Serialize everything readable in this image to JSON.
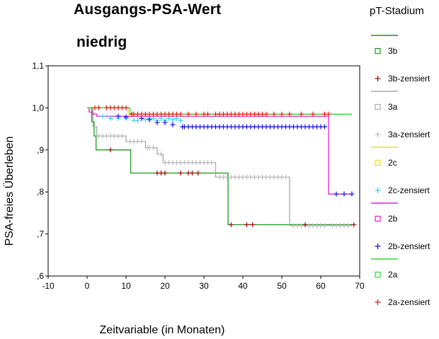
{
  "header": {
    "title": "Ausgangs-PSA-Wert",
    "subtitle": "niedrig"
  },
  "chart_data": {
    "type": "line",
    "step": true,
    "xlabel": "Zeitvariable (in Monaten)",
    "ylabel": "PSA-freies Überleben",
    "xlim": [
      -10,
      70
    ],
    "ylim": [
      0.6,
      1.1
    ],
    "x_ticks": [
      -10,
      0,
      10,
      20,
      30,
      40,
      50,
      60,
      70
    ],
    "x_tick_labels": [
      "-10",
      "0",
      "10",
      "20",
      "30",
      "40",
      "50",
      "60",
      "70"
    ],
    "y_ticks": [
      0.6,
      0.7,
      0.8,
      0.9,
      1.0,
      1.1
    ],
    "y_tick_labels": [
      ",6",
      ",7",
      ",8",
      ",9",
      "1,0",
      "1,1"
    ],
    "legend_title": "pT-Stadium",
    "legend_position": "right",
    "series": [
      {
        "name": "3b",
        "color": "#1a9a1a",
        "steps": [
          [
            0,
            1.0
          ],
          [
            1.2,
            0.967
          ],
          [
            1.8,
            0.933
          ],
          [
            2.3,
            0.9
          ],
          [
            11.2,
            0.845
          ],
          [
            36.2,
            0.722
          ],
          [
            68.5,
            0.722
          ]
        ],
        "censored_name": "3b-zensiert",
        "censored_color": "#a01010",
        "censored": [
          [
            6,
            0.9
          ],
          [
            11.5,
            0.985
          ],
          [
            18,
            0.845
          ],
          [
            19,
            0.845
          ],
          [
            20,
            0.845
          ],
          [
            24,
            0.845
          ],
          [
            26,
            0.845
          ],
          [
            27,
            0.845
          ],
          [
            28.5,
            0.845
          ],
          [
            37,
            0.722
          ],
          [
            41,
            0.722
          ],
          [
            42.5,
            0.722
          ],
          [
            56,
            0.722
          ],
          [
            68.5,
            0.722
          ]
        ]
      },
      {
        "name": "3a",
        "color": "#a8a8a8",
        "steps": [
          [
            0,
            1.0
          ],
          [
            1.5,
            0.955
          ],
          [
            2.5,
            0.933
          ],
          [
            10,
            0.92
          ],
          [
            15,
            0.905
          ],
          [
            18,
            0.89
          ],
          [
            19.5,
            0.87
          ],
          [
            33,
            0.835
          ],
          [
            52,
            0.72
          ],
          [
            68,
            0.72
          ]
        ],
        "censored_name": "3a-zensiert",
        "censored_color": "#bcbcbc",
        "censored": [
          [
            3,
            0.933
          ],
          [
            4,
            0.933
          ],
          [
            5,
            0.933
          ],
          [
            6,
            0.933
          ],
          [
            7,
            0.933
          ],
          [
            8,
            0.933
          ],
          [
            9,
            0.933
          ],
          [
            11,
            0.92
          ],
          [
            12,
            0.92
          ],
          [
            13,
            0.92
          ],
          [
            14,
            0.92
          ],
          [
            15.5,
            0.905
          ],
          [
            16,
            0.905
          ],
          [
            17,
            0.905
          ],
          [
            19,
            0.89
          ],
          [
            20,
            0.87
          ],
          [
            21,
            0.87
          ],
          [
            22,
            0.87
          ],
          [
            23,
            0.87
          ],
          [
            24,
            0.87
          ],
          [
            25,
            0.87
          ],
          [
            26,
            0.87
          ],
          [
            27,
            0.87
          ],
          [
            28,
            0.87
          ],
          [
            29,
            0.87
          ],
          [
            30,
            0.87
          ],
          [
            31,
            0.87
          ],
          [
            32,
            0.87
          ],
          [
            34,
            0.835
          ],
          [
            35,
            0.835
          ],
          [
            36,
            0.835
          ],
          [
            37,
            0.835
          ],
          [
            38,
            0.835
          ],
          [
            39,
            0.835
          ],
          [
            40,
            0.835
          ],
          [
            41,
            0.835
          ],
          [
            42,
            0.835
          ],
          [
            43,
            0.835
          ],
          [
            44,
            0.835
          ],
          [
            45,
            0.835
          ],
          [
            46,
            0.835
          ],
          [
            47,
            0.835
          ],
          [
            48,
            0.835
          ],
          [
            49,
            0.835
          ],
          [
            50,
            0.835
          ],
          [
            51,
            0.835
          ],
          [
            53,
            0.72
          ],
          [
            54,
            0.72
          ],
          [
            55,
            0.72
          ],
          [
            57,
            0.72
          ],
          [
            58,
            0.72
          ],
          [
            59,
            0.72
          ],
          [
            60,
            0.72
          ],
          [
            61,
            0.72
          ],
          [
            63,
            0.72
          ],
          [
            64,
            0.72
          ],
          [
            65,
            0.72
          ],
          [
            66,
            0.72
          ],
          [
            67,
            0.72
          ]
        ]
      },
      {
        "name": "2c",
        "color": "#f0e020",
        "steps": [
          [
            0,
            1.0
          ],
          [
            10.5,
            0.985
          ],
          [
            24,
            0.985
          ]
        ],
        "censored_name": "2c-zensiert",
        "censored_color": "#30d8f0",
        "censored": [
          [
            4,
            0.98
          ],
          [
            6,
            0.975
          ],
          [
            8,
            0.975
          ],
          [
            10,
            0.975
          ],
          [
            12,
            0.97
          ],
          [
            13,
            0.97
          ],
          [
            14,
            0.975
          ],
          [
            15,
            0.972
          ],
          [
            16,
            0.975
          ],
          [
            17,
            0.975
          ],
          [
            18,
            0.97
          ],
          [
            19,
            0.975
          ],
          [
            20,
            0.97
          ],
          [
            21,
            0.975
          ],
          [
            22,
            0.972
          ],
          [
            23,
            0.975
          ],
          [
            24,
            0.97
          ]
        ]
      },
      {
        "name": "2b",
        "color": "#e020d0",
        "steps": [
          [
            0,
            1.0
          ],
          [
            0.5,
            0.99
          ],
          [
            1.5,
            0.985
          ],
          [
            2.5,
            0.98
          ],
          [
            62,
            0.98
          ],
          [
            62,
            0.795
          ],
          [
            68,
            0.795
          ]
        ],
        "censored_name": "2b-zensiert",
        "censored_color": "#1010e0",
        "censored": [
          [
            8,
            0.98
          ],
          [
            10,
            0.978
          ],
          [
            14,
            0.975
          ],
          [
            16,
            0.972
          ],
          [
            18,
            0.965
          ],
          [
            20,
            0.965
          ],
          [
            22,
            0.96
          ],
          [
            24.5,
            0.955
          ],
          [
            25,
            0.955
          ],
          [
            26,
            0.955
          ],
          [
            27,
            0.955
          ],
          [
            28,
            0.955
          ],
          [
            29,
            0.955
          ],
          [
            30,
            0.955
          ],
          [
            31,
            0.955
          ],
          [
            32,
            0.955
          ],
          [
            33,
            0.955
          ],
          [
            34,
            0.955
          ],
          [
            35,
            0.955
          ],
          [
            36,
            0.955
          ],
          [
            37,
            0.955
          ],
          [
            38,
            0.955
          ],
          [
            39,
            0.955
          ],
          [
            40,
            0.955
          ],
          [
            41,
            0.955
          ],
          [
            42,
            0.955
          ],
          [
            43,
            0.955
          ],
          [
            44,
            0.955
          ],
          [
            45,
            0.955
          ],
          [
            46,
            0.955
          ],
          [
            47,
            0.955
          ],
          [
            48,
            0.955
          ],
          [
            49,
            0.955
          ],
          [
            50,
            0.955
          ],
          [
            51,
            0.955
          ],
          [
            52,
            0.955
          ],
          [
            53,
            0.955
          ],
          [
            54,
            0.955
          ],
          [
            55,
            0.955
          ],
          [
            56,
            0.955
          ],
          [
            57,
            0.955
          ],
          [
            58,
            0.955
          ],
          [
            59,
            0.955
          ],
          [
            60,
            0.955
          ],
          [
            61,
            0.955
          ],
          [
            64,
            0.795
          ],
          [
            66,
            0.795
          ],
          [
            68,
            0.795
          ]
        ]
      },
      {
        "name": "2a",
        "color": "#30d830",
        "steps": [
          [
            0,
            1.0
          ],
          [
            11,
            1.0
          ],
          [
            11,
            0.985
          ],
          [
            68,
            0.985
          ]
        ],
        "censored_name": "2a-zensiert",
        "censored_color": "#e81818",
        "censored": [
          [
            2,
            1.0
          ],
          [
            3,
            1.0
          ],
          [
            5,
            1.0
          ],
          [
            6,
            1.0
          ],
          [
            7,
            1.0
          ],
          [
            8,
            1.0
          ],
          [
            9,
            1.0
          ],
          [
            10,
            1.0
          ],
          [
            12,
            0.985
          ],
          [
            13,
            0.985
          ],
          [
            14,
            0.985
          ],
          [
            15,
            0.985
          ],
          [
            16,
            0.985
          ],
          [
            17,
            0.985
          ],
          [
            18,
            0.985
          ],
          [
            19,
            0.985
          ],
          [
            20,
            0.985
          ],
          [
            21,
            0.985
          ],
          [
            22,
            0.985
          ],
          [
            23,
            0.985
          ],
          [
            24,
            0.985
          ],
          [
            26,
            0.985
          ],
          [
            28,
            0.985
          ],
          [
            30,
            0.985
          ],
          [
            31,
            0.985
          ],
          [
            33,
            0.985
          ],
          [
            34,
            0.985
          ],
          [
            35,
            0.985
          ],
          [
            36,
            0.985
          ],
          [
            37,
            0.985
          ],
          [
            38,
            0.985
          ],
          [
            39,
            0.985
          ],
          [
            40,
            0.985
          ],
          [
            41,
            0.985
          ],
          [
            42,
            0.985
          ],
          [
            43,
            0.985
          ],
          [
            44,
            0.985
          ],
          [
            45,
            0.985
          ],
          [
            46,
            0.985
          ],
          [
            48,
            0.985
          ],
          [
            50,
            0.985
          ],
          [
            52,
            0.985
          ],
          [
            55,
            0.985
          ],
          [
            58,
            0.985
          ],
          [
            61,
            0.985
          ],
          [
            62,
            0.985
          ]
        ]
      }
    ]
  }
}
